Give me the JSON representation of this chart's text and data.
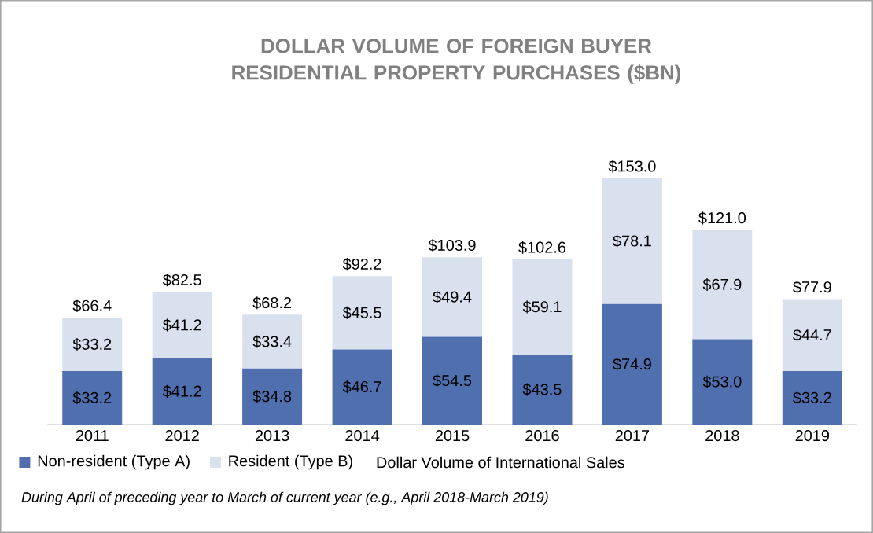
{
  "chart_data": {
    "type": "bar",
    "title": "DOLLAR VOLUME OF FOREIGN BUYER RESIDENTIAL PROPERTY PURCHASES ($BN)",
    "stacked": true,
    "legend": "bottom",
    "categories": [
      "2011",
      "2012",
      "2013",
      "2014",
      "2015",
      "2016",
      "2017",
      "2018",
      "2019"
    ],
    "series": [
      {
        "name": "Non-resident (Type A)",
        "color": "#4f6fae",
        "values": [
          33.2,
          41.2,
          34.8,
          46.7,
          54.5,
          43.5,
          74.9,
          53.0,
          33.2
        ],
        "value_labels": [
          "$33.2",
          "$41.2",
          "$34.8",
          "$46.7",
          "$54.5",
          "$43.5",
          "$74.9",
          "$53.0",
          "$33.2"
        ]
      },
      {
        "name": "Resident (Type B)",
        "color": "#dae1ee",
        "values": [
          33.2,
          41.2,
          33.4,
          45.5,
          49.4,
          59.1,
          78.1,
          67.9,
          44.7
        ],
        "value_labels": [
          "$33.2",
          "$41.2",
          "$33.4",
          "$45.5",
          "$49.4",
          "$59.1",
          "$78.1",
          "$67.9",
          "$44.7"
        ]
      }
    ],
    "totals": [
      "$66.4",
      "$82.5",
      "$68.2",
      "$92.2",
      "$103.9",
      "$102.6",
      "$153.0",
      "$121.0",
      "$77.9"
    ],
    "annotations": [
      "Dollar Volume of International Sales",
      "During April of preceding year to March of current year (e.g., April 2018-March 2019)"
    ]
  }
}
